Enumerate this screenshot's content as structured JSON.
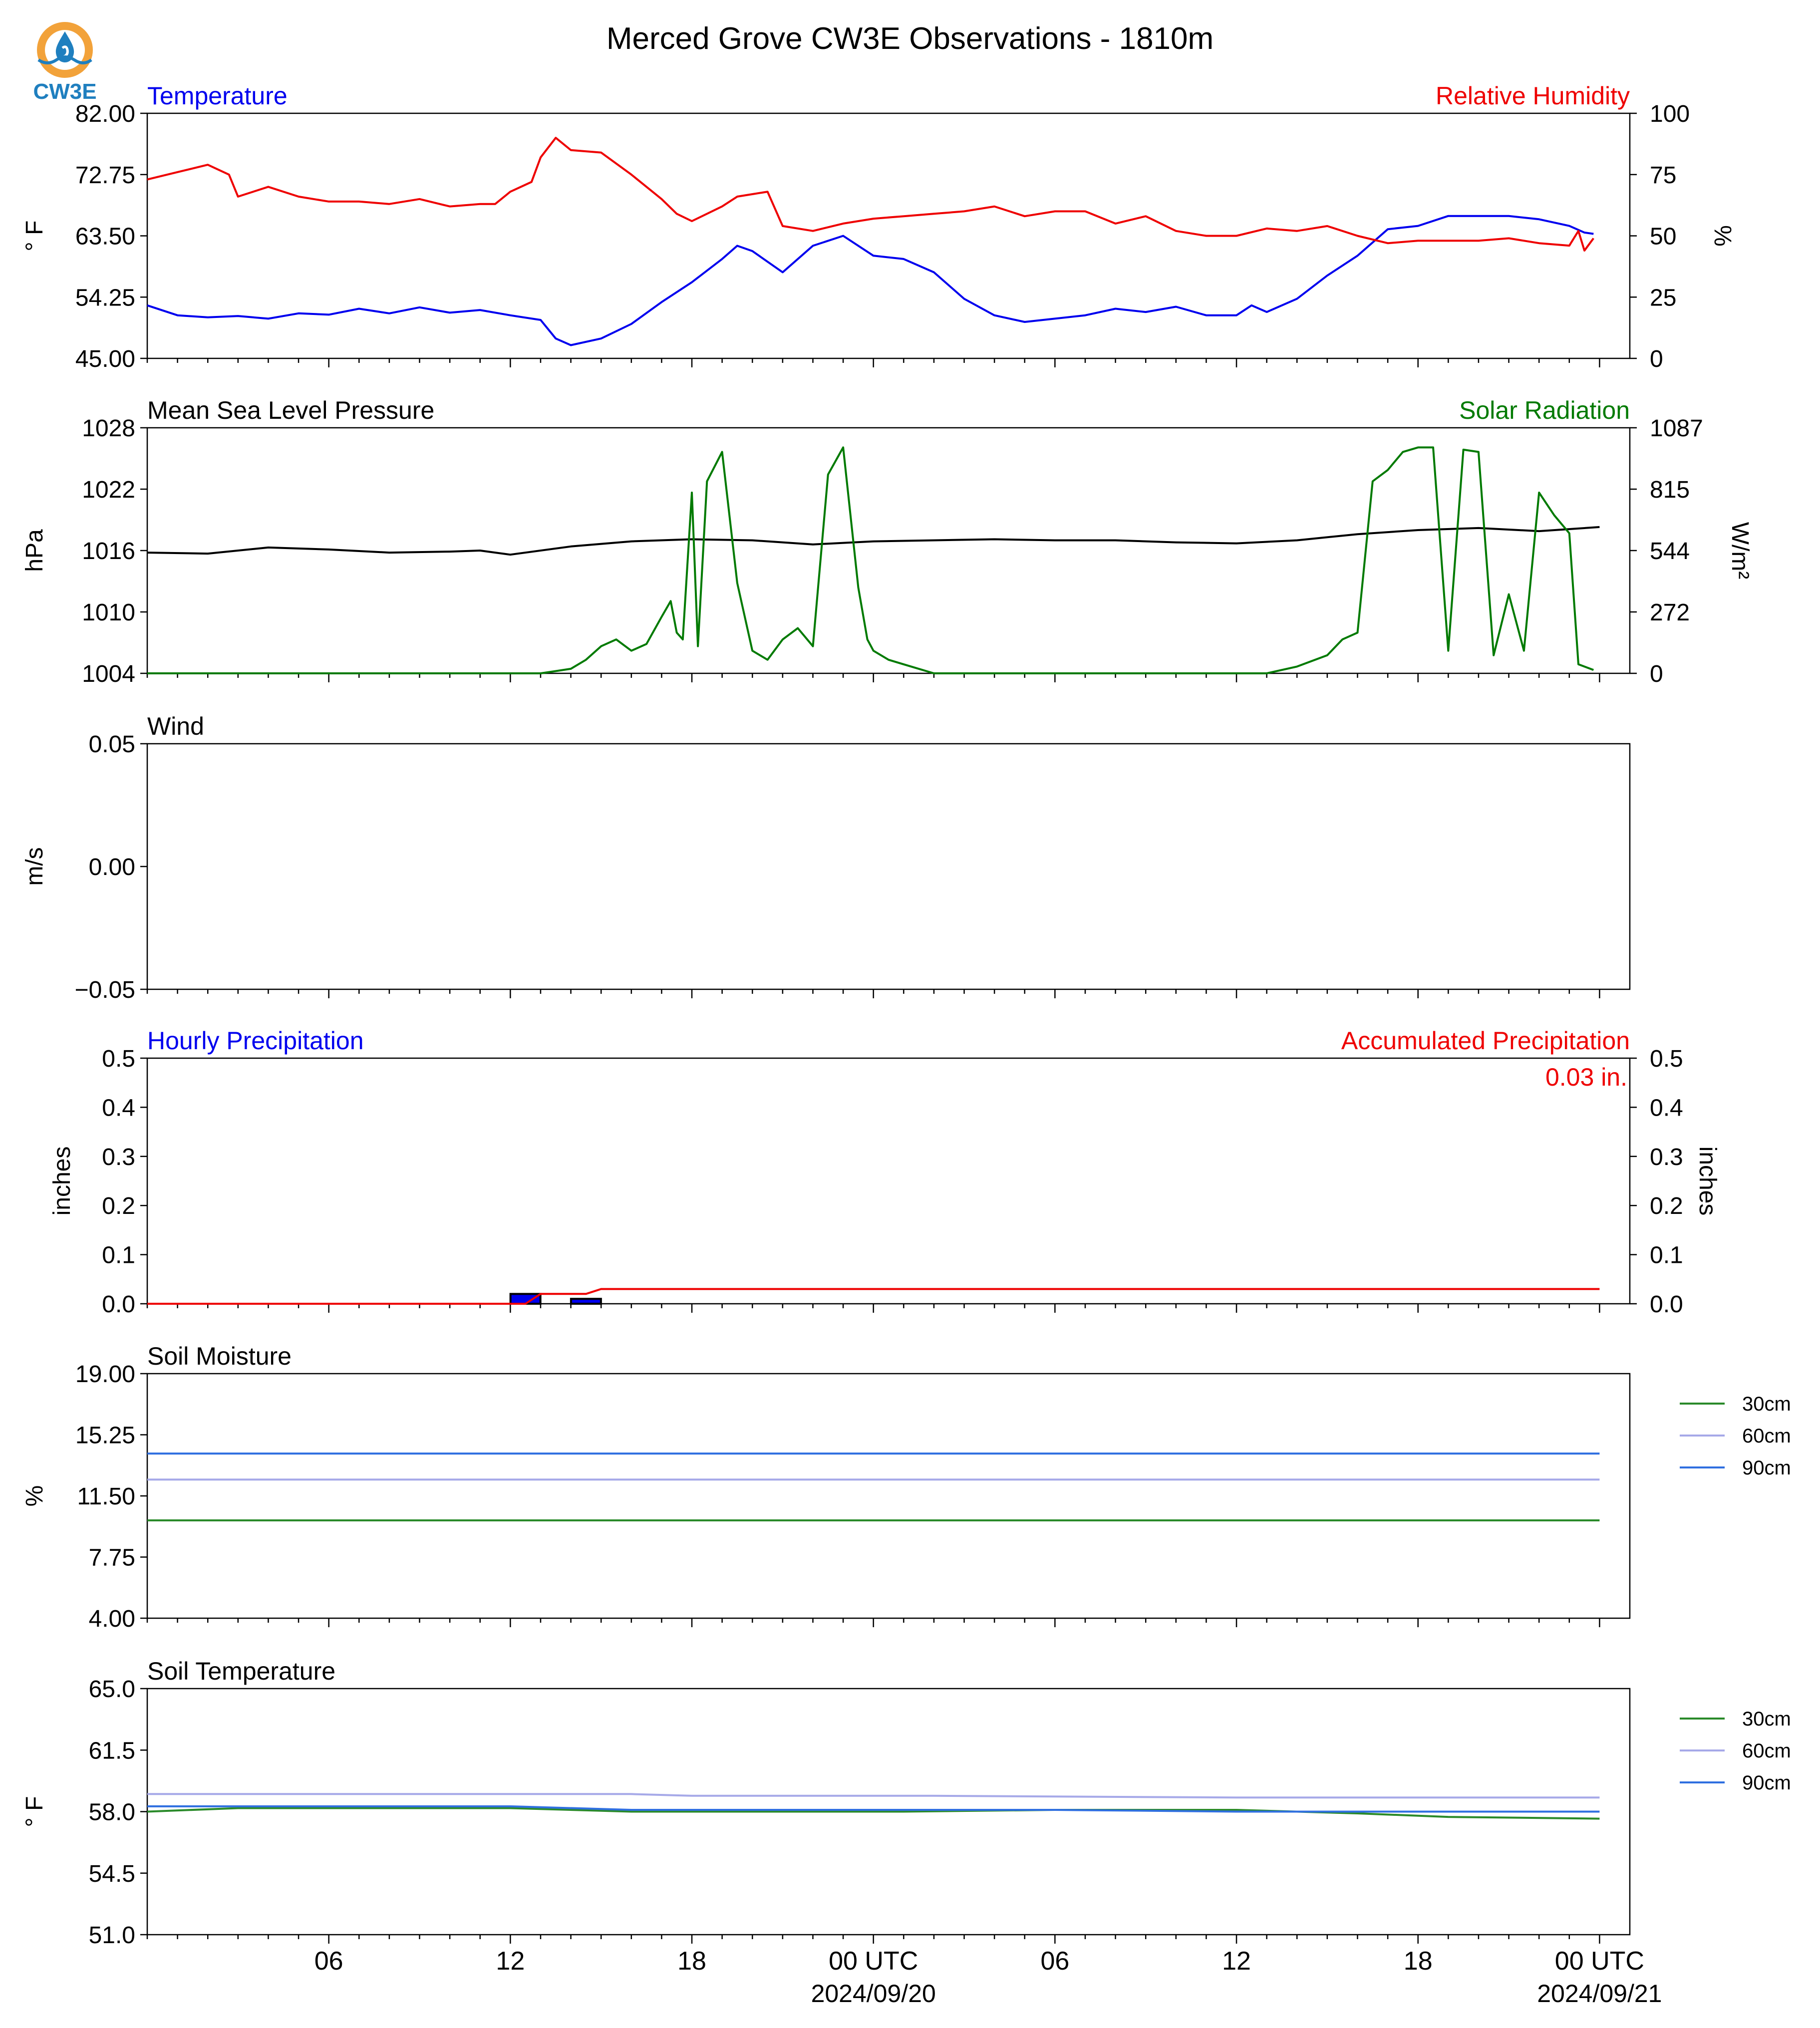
{
  "title": "Merced Grove CW3E Observations - 1810m",
  "logo": {
    "text": "CW3E",
    "ring_color": "#f2a23a",
    "drop_color": "#1f7fbf",
    "text_color": "#1f7fbf"
  },
  "x_ticks": [
    "06",
    "12",
    "18",
    "00 UTC",
    "06",
    "12",
    "18",
    "00 UTC"
  ],
  "x_dates": [
    "2024/09/20",
    "2024/09/21"
  ],
  "chart_data": [
    {
      "type": "line",
      "title_left": "Temperature",
      "title_right": "Relative Humidity",
      "ylabel_left": "° F",
      "ylabel_right": "%",
      "ylim_left": [
        45.0,
        82.0
      ],
      "ylim_right": [
        0,
        100
      ],
      "yticks_left": [
        "82.00",
        "72.75",
        "63.50",
        "54.25",
        "45.00"
      ],
      "yticks_right": [
        "100",
        "75",
        "50",
        "25",
        "0"
      ],
      "x_range_hours": [
        0,
        48
      ],
      "series": [
        {
          "name": "Temperature",
          "axis": "left",
          "color": "#0000ee",
          "x": [
            0,
            1,
            2,
            3,
            4,
            5,
            6,
            7,
            8,
            9,
            10,
            11,
            12,
            13,
            13.5,
            14,
            15,
            16,
            17,
            18,
            19,
            19.5,
            20,
            21,
            22,
            23,
            24,
            25,
            26,
            27,
            28,
            29,
            30,
            31,
            32,
            33,
            34,
            35,
            36,
            36.5,
            37,
            38,
            39,
            40,
            41,
            42,
            43,
            44,
            45,
            46,
            47,
            47.5,
            47.8
          ],
          "y": [
            53.0,
            51.5,
            51.2,
            51.4,
            51.0,
            51.8,
            51.6,
            52.5,
            51.8,
            52.7,
            51.9,
            52.3,
            51.5,
            50.8,
            48.0,
            47.0,
            48.0,
            50.2,
            53.5,
            56.5,
            60.0,
            62.0,
            61.2,
            58.0,
            62.0,
            63.5,
            60.5,
            60.0,
            58.0,
            54.0,
            51.5,
            50.5,
            51.0,
            51.5,
            52.5,
            52.0,
            52.8,
            51.5,
            51.5,
            53.0,
            52.0,
            54.0,
            57.5,
            60.5,
            64.5,
            65.0,
            66.5,
            66.5,
            66.5,
            66.0,
            65.0,
            64.0,
            63.8
          ]
        },
        {
          "name": "Relative Humidity",
          "axis": "right",
          "color": "#ee0000",
          "x": [
            0,
            1,
            2,
            2.7,
            3,
            3.5,
            4,
            5,
            6,
            7,
            8,
            9,
            10,
            11,
            11.5,
            12,
            12.7,
            13,
            13.5,
            14,
            15,
            16,
            17,
            17.5,
            18,
            19,
            19.5,
            20,
            20.5,
            21,
            22,
            23,
            24,
            25,
            26,
            27,
            28,
            29,
            30,
            31,
            32,
            33,
            34,
            35,
            36,
            37,
            38,
            39,
            40,
            41,
            42,
            43,
            44,
            45,
            46,
            47,
            47.3,
            47.5,
            47.8
          ],
          "y": [
            73,
            76,
            79,
            75,
            66,
            68,
            70,
            66,
            64,
            64,
            63,
            65,
            62,
            63,
            63,
            68,
            72,
            82,
            90,
            85,
            84,
            75,
            65,
            59,
            56,
            62,
            66,
            67,
            68,
            54,
            52,
            55,
            57,
            58,
            59,
            60,
            62,
            58,
            60,
            60,
            55,
            58,
            52,
            50,
            50,
            53,
            52,
            54,
            50,
            47,
            48,
            48,
            48,
            49,
            47,
            46,
            52,
            44,
            49
          ]
        }
      ]
    },
    {
      "type": "line",
      "title_left": "Mean Sea Level Pressure",
      "title_right": "Solar Radiation",
      "ylabel_left": "hPa",
      "ylabel_right": "W/m²",
      "ylim_left": [
        1004,
        1028
      ],
      "ylim_right": [
        0,
        1087
      ],
      "yticks_left": [
        "1028",
        "1022",
        "1016",
        "1010",
        "1004"
      ],
      "yticks_right": [
        "1087",
        "815",
        "544",
        "272",
        "0"
      ],
      "x_range_hours": [
        0,
        48
      ],
      "series": [
        {
          "name": "Mean Sea Level Pressure",
          "axis": "left",
          "color": "#000000",
          "x": [
            0,
            2,
            4,
            6,
            8,
            10,
            11,
            12,
            14,
            16,
            18,
            20,
            22,
            24,
            26,
            28,
            30,
            32,
            34,
            36,
            38,
            40,
            42,
            44,
            46,
            48
          ],
          "y": [
            1015.8,
            1015.7,
            1016.3,
            1016.1,
            1015.8,
            1015.9,
            1016.0,
            1015.6,
            1016.4,
            1016.9,
            1017.1,
            1017.0,
            1016.6,
            1016.9,
            1017.0,
            1017.1,
            1017.0,
            1017.0,
            1016.8,
            1016.7,
            1017.0,
            1017.6,
            1018.0,
            1018.2,
            1017.9,
            1018.3
          ]
        },
        {
          "name": "Solar Radiation",
          "axis": "right",
          "color": "#007a00",
          "x": [
            0,
            1,
            13,
            13.5,
            14,
            14.5,
            15,
            15.5,
            16,
            16.5,
            17,
            17.3,
            17.5,
            17.7,
            18,
            18.2,
            18.5,
            19,
            19.5,
            20,
            20.5,
            21,
            21.5,
            22,
            22.5,
            23,
            23.5,
            23.8,
            24,
            24.5,
            25,
            26,
            37,
            38,
            39,
            39.5,
            40,
            40.5,
            41,
            41.5,
            42,
            42.5,
            43,
            43.5,
            44,
            44.5,
            45,
            45.5,
            46,
            46.5,
            47,
            47.3,
            47.8
          ],
          "y": [
            0,
            0,
            0,
            10,
            20,
            60,
            120,
            150,
            100,
            130,
            250,
            320,
            180,
            150,
            800,
            120,
            850,
            980,
            400,
            100,
            60,
            150,
            200,
            120,
            880,
            1000,
            380,
            150,
            100,
            60,
            40,
            0,
            0,
            30,
            80,
            150,
            180,
            850,
            900,
            980,
            1000,
            1000,
            100,
            990,
            980,
            80,
            350,
            100,
            800,
            700,
            620,
            40,
            15
          ]
        }
      ]
    },
    {
      "type": "line",
      "title_left": "Wind",
      "ylabel_left": "m/s",
      "ylim_left": [
        -0.055,
        0.055
      ],
      "yticks_left": [
        "0.05",
        "0.00",
        "−0.05"
      ],
      "series": []
    },
    {
      "type": "bar",
      "title_left": "Hourly Precipitation",
      "title_right": "Accumulated Precipitation",
      "ylabel_left": "inches",
      "ylabel_right": "inches",
      "ylim_left": [
        0,
        0.5
      ],
      "ylim_right": [
        0,
        0.5
      ],
      "yticks_left": [
        "0.5",
        "0.4",
        "0.3",
        "0.2",
        "0.1",
        "0.0"
      ],
      "yticks_right": [
        "0.5",
        "0.4",
        "0.3",
        "0.2",
        "0.1",
        "0.0"
      ],
      "annotation": "0.03 in.",
      "hourly": {
        "name": "Hourly Precipitation",
        "color": "#0000ee",
        "x": [
          12.5,
          14.5
        ],
        "values": [
          0.02,
          0.01
        ]
      },
      "accumulated": {
        "name": "Accumulated Precipitation",
        "color": "#ee0000",
        "x": [
          0,
          12.5,
          13,
          14.5,
          15,
          48
        ],
        "y": [
          0,
          0,
          0.02,
          0.02,
          0.03,
          0.03
        ]
      }
    },
    {
      "type": "line",
      "title_left": "Soil Moisture",
      "ylabel_left": "%",
      "ylim_left": [
        4.0,
        19.0
      ],
      "yticks_left": [
        "19.00",
        "15.25",
        "11.50",
        "7.75",
        "4.00"
      ],
      "legend": [
        "30cm",
        "60cm",
        "90cm"
      ],
      "series": [
        {
          "name": "30cm",
          "color": "#2a8a2a",
          "x": [
            0,
            48
          ],
          "y": [
            10.0,
            10.0
          ]
        },
        {
          "name": "60cm",
          "color": "#a6a9e8",
          "x": [
            0,
            48
          ],
          "y": [
            12.5,
            12.5
          ]
        },
        {
          "name": "90cm",
          "color": "#2f6fe0",
          "x": [
            0,
            48
          ],
          "y": [
            14.1,
            14.1
          ]
        }
      ]
    },
    {
      "type": "line",
      "title_left": "Soil Temperature",
      "ylabel_left": "° F",
      "ylim_left": [
        51.0,
        65.0
      ],
      "yticks_left": [
        "65.0",
        "61.5",
        "58.0",
        "54.5",
        "51.0"
      ],
      "legend": [
        "30cm",
        "60cm",
        "90cm"
      ],
      "series": [
        {
          "name": "30cm",
          "color": "#2a8a2a",
          "x": [
            0,
            3,
            12,
            16,
            25,
            30,
            36,
            40,
            43,
            48
          ],
          "y": [
            58.0,
            58.2,
            58.2,
            58.0,
            58.0,
            58.1,
            58.1,
            57.9,
            57.7,
            57.6
          ]
        },
        {
          "name": "60cm",
          "color": "#a6a9e8",
          "x": [
            0,
            12,
            16,
            18,
            26,
            36,
            48
          ],
          "y": [
            59.0,
            59.0,
            59.0,
            58.9,
            58.9,
            58.8,
            58.8
          ]
        },
        {
          "name": "90cm",
          "color": "#2f6fe0",
          "x": [
            0,
            12,
            16,
            30,
            36,
            48
          ],
          "y": [
            58.3,
            58.3,
            58.1,
            58.1,
            58.0,
            58.0
          ]
        }
      ]
    }
  ]
}
